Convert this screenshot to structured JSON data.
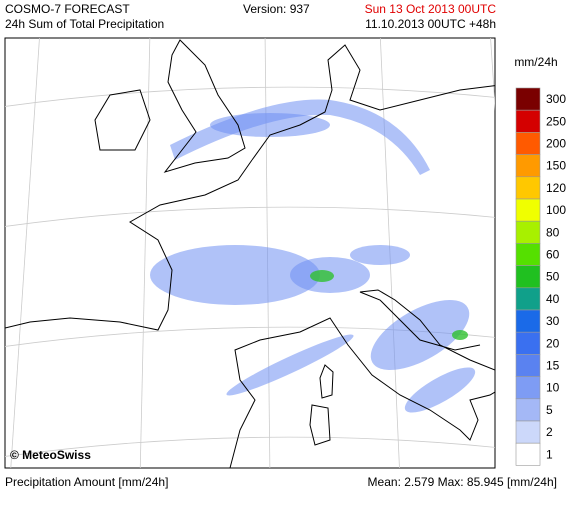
{
  "header": {
    "title": "COSMO-7 FORECAST",
    "subtitle": "24h Sum of Total Precipitation",
    "version": "Version: 937",
    "valid_time": "Sun 13 Oct 2013 00UTC",
    "run": "11.10.2013 00UTC +48h"
  },
  "map": {
    "credit": "© MeteoSwiss"
  },
  "legend": {
    "unit": "mm/24h",
    "items": [
      {
        "label": 300,
        "color": "#7a0000"
      },
      {
        "label": 250,
        "color": "#d40000"
      },
      {
        "label": 200,
        "color": "#ff5a00"
      },
      {
        "label": 150,
        "color": "#ff9a00"
      },
      {
        "label": 120,
        "color": "#ffc800"
      },
      {
        "label": 100,
        "color": "#f0ff00"
      },
      {
        "label": 80,
        "color": "#a8f000"
      },
      {
        "label": 60,
        "color": "#55e000"
      },
      {
        "label": 50,
        "color": "#20c020"
      },
      {
        "label": 40,
        "color": "#10a08a"
      },
      {
        "label": 30,
        "color": "#1a6ae8"
      },
      {
        "label": 20,
        "color": "#3a70f0"
      },
      {
        "label": 15,
        "color": "#5a82f0"
      },
      {
        "label": 10,
        "color": "#7e9cf4"
      },
      {
        "label": 5,
        "color": "#a4b8f6"
      },
      {
        "label": 2,
        "color": "#ccd8fa"
      },
      {
        "label": 1,
        "color": "#ffffff"
      }
    ]
  },
  "footer": {
    "left": "Precipitation Amount [mm/24h]",
    "right": "Mean:  2.579 Max: 85.945 [mm/24h]"
  }
}
